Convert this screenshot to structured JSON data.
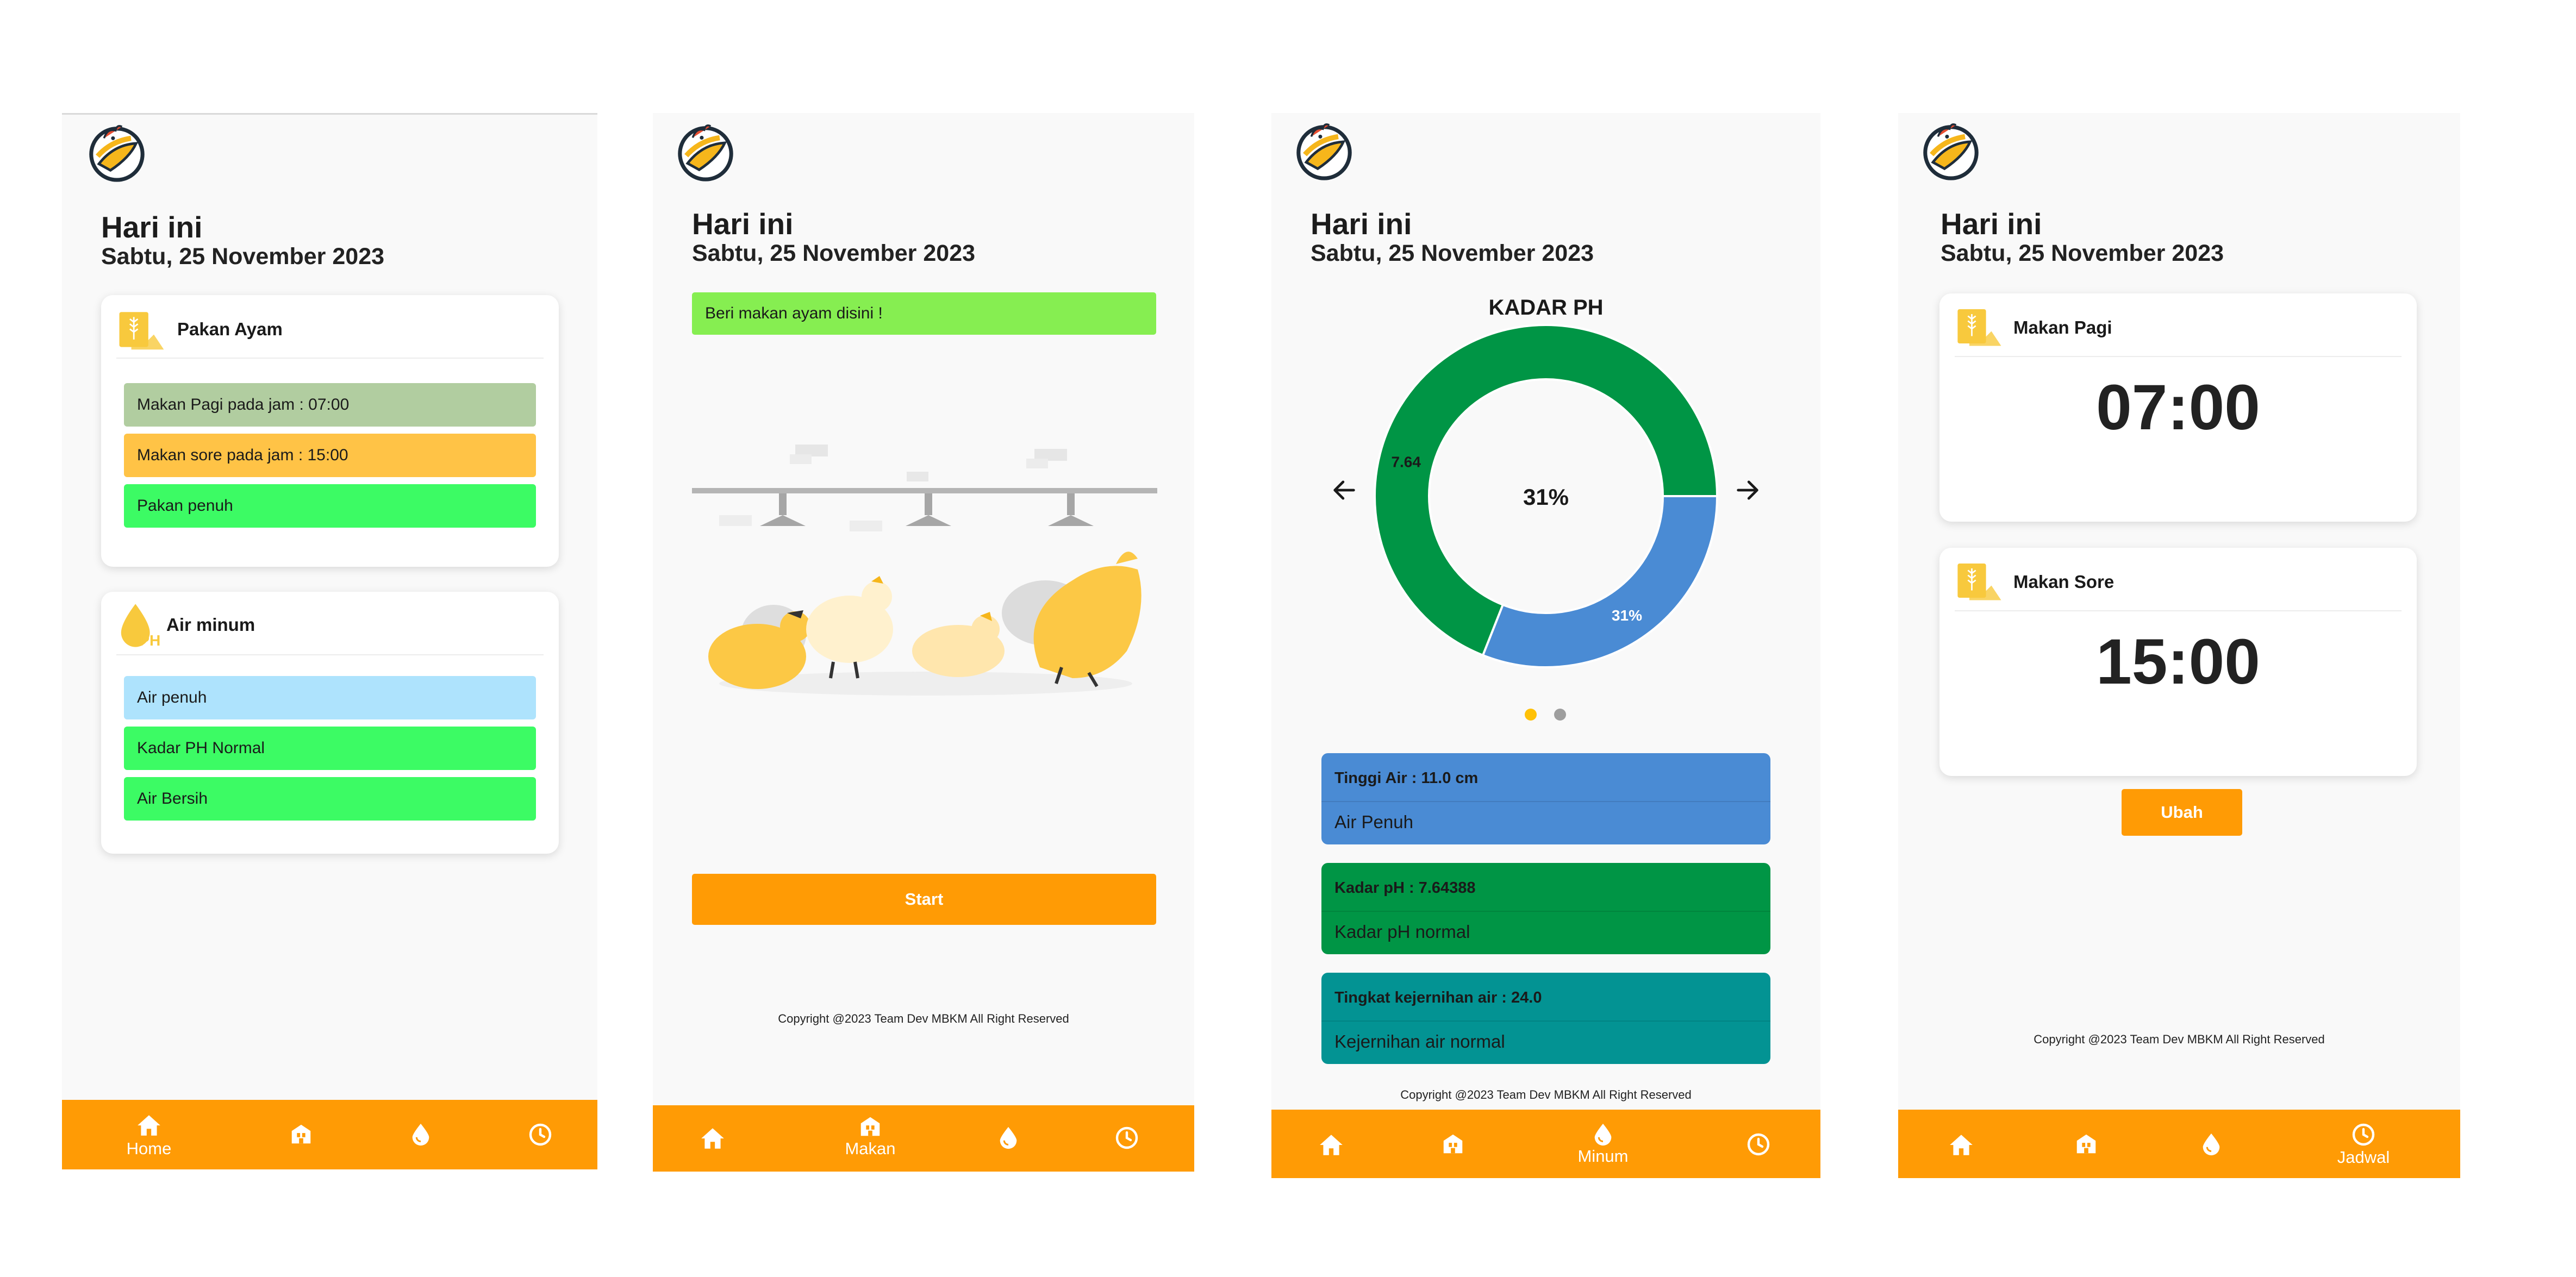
{
  "common": {
    "today_label": "Hari ini",
    "date": "Sabtu, 25 November 2023",
    "copyright": "Copyright @2023 Team Dev MBKM All Right Reserved"
  },
  "colors": {
    "accent": "#ff9b05",
    "green_status": "#3cfb64",
    "sage": "#b1cda0",
    "amber": "#ffc346",
    "light_blue": "#aee3fd",
    "lime": "#86ee51",
    "chart_green": "#009545",
    "chart_blue": "#4a8bd4",
    "teal": "#039393"
  },
  "home": {
    "pakan_card": {
      "title": "Pakan Ayam",
      "icon": "wheat-icon",
      "items": [
        "Makan Pagi pada jam : 07:00",
        "Makan sore pada jam : 15:00",
        "Pakan penuh"
      ]
    },
    "air_card": {
      "title": "Air minum",
      "icon": "ph-drop-icon",
      "items": [
        "Air penuh",
        "Kadar PH Normal",
        "Air Bersih"
      ]
    },
    "nav_label": "Home"
  },
  "makan": {
    "banner": "Beri makan ayam disini !",
    "start_label": "Start",
    "nav_label": "Makan"
  },
  "minum": {
    "chart_title": "KADAR PH",
    "center_label": "31%",
    "slice_label_green": "7.64",
    "slice_label_blue": "31%",
    "stats": [
      {
        "title": "Tinggi Air : 11.0 cm",
        "desc": "Air Penuh"
      },
      {
        "title": "Kadar pH : 7.64388",
        "desc": "Kadar pH normal"
      },
      {
        "title": "Tingkat kejernihan air : 24.0",
        "desc": "Kejernihan air normal"
      }
    ],
    "nav_label": "Minum",
    "carousel_active_index": 0,
    "carousel_count": 2
  },
  "chart_data": {
    "type": "pie",
    "title": "KADAR PH",
    "labels": [
      "7.64",
      "31%"
    ],
    "values": [
      69,
      31
    ],
    "colors": [
      "#009545",
      "#4a8bd4"
    ]
  },
  "jadwal": {
    "pagi": {
      "title": "Makan Pagi",
      "time": "07:00"
    },
    "sore": {
      "title": "Makan Sore",
      "time": "15:00"
    },
    "ubah_label": "Ubah",
    "nav_label": "Jadwal"
  },
  "icons": {
    "nav": [
      "home-icon",
      "barn-icon",
      "water-drop-icon",
      "clock-icon"
    ],
    "logo": "chicken-logo-icon"
  }
}
